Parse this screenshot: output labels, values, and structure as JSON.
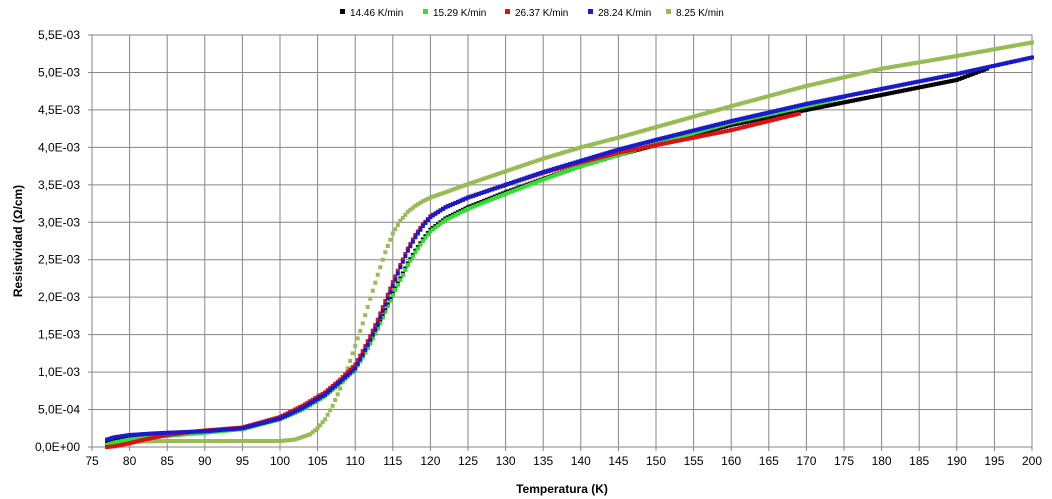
{
  "chart_data": {
    "type": "scatter",
    "title": "",
    "xlabel": "Temperatura (K)",
    "ylabel": "Resistividad (Ω/cm)",
    "xlim": [
      75,
      200
    ],
    "ylim": [
      0,
      0.0055
    ],
    "grid": true,
    "legend_position": "top",
    "x_ticks": [
      75,
      80,
      85,
      90,
      95,
      100,
      105,
      110,
      115,
      120,
      125,
      130,
      135,
      140,
      145,
      150,
      155,
      160,
      165,
      170,
      175,
      180,
      185,
      190,
      195,
      200
    ],
    "y_ticks": [
      0,
      0.0005,
      0.001,
      0.0015,
      0.002,
      0.0025,
      0.003,
      0.0035,
      0.004,
      0.0045,
      0.005,
      0.0055
    ],
    "y_tick_labels": [
      "0,0E+00",
      "5,0E-04",
      "1,0E-03",
      "1,5E-03",
      "2,0E-03",
      "2,5E-03",
      "3,0E-03",
      "3,5E-03",
      "4,0E-03",
      "4,5E-03",
      "5,0E-03",
      "5,5E-03"
    ],
    "series": [
      {
        "name": "14.46 K/min",
        "color": "#000000",
        "x": [
          77,
          78,
          80,
          85,
          90,
          95,
          100,
          103,
          106,
          108,
          110,
          111,
          112,
          113,
          114,
          115,
          116,
          117,
          118,
          119,
          120,
          122,
          125,
          130,
          135,
          140,
          145,
          150,
          160,
          170,
          180,
          190,
          194
        ],
        "y": [
          5e-05,
          0.0001,
          0.00013,
          0.00017,
          0.0002,
          0.00024,
          0.00038,
          0.00052,
          0.0007,
          0.00087,
          0.00105,
          0.00122,
          0.0014,
          0.0016,
          0.00183,
          0.00205,
          0.00225,
          0.00245,
          0.00262,
          0.00277,
          0.0029,
          0.00305,
          0.0032,
          0.0034,
          0.00358,
          0.00375,
          0.0039,
          0.00403,
          0.0043,
          0.0045,
          0.0047,
          0.0049,
          0.00505
        ]
      },
      {
        "name": "15.29 K/min",
        "color": "#33dd33",
        "x": [
          77,
          78,
          80,
          85,
          90,
          95,
          100,
          103,
          106,
          108,
          110,
          111,
          112,
          113,
          114,
          115,
          116,
          117,
          118,
          119,
          120,
          122,
          125,
          130,
          135,
          140,
          145,
          150,
          160,
          170,
          175
        ],
        "y": [
          3e-05,
          6e-05,
          0.0001,
          0.00015,
          0.00019,
          0.00024,
          0.00037,
          0.0005,
          0.00068,
          0.00085,
          0.00103,
          0.0012,
          0.00138,
          0.00158,
          0.0018,
          0.00203,
          0.00223,
          0.00243,
          0.0026,
          0.00275,
          0.00288,
          0.00303,
          0.00318,
          0.00338,
          0.00357,
          0.00375,
          0.0039,
          0.00405,
          0.00433,
          0.00455,
          0.00467
        ]
      },
      {
        "name": "26.37 K/min",
        "color": "#dd1111",
        "x": [
          77,
          78,
          80,
          82,
          85,
          88,
          90,
          95,
          100,
          103,
          106,
          108,
          110,
          111,
          112,
          113,
          114,
          115,
          116,
          117,
          118,
          119,
          120,
          122,
          125,
          130,
          135,
          140,
          145,
          150,
          160,
          169
        ],
        "y": [
          0,
          1e-05,
          5e-05,
          0.0001,
          0.00016,
          0.0002,
          0.00022,
          0.00026,
          0.0004,
          0.00055,
          0.00073,
          0.0009,
          0.0011,
          0.00128,
          0.00148,
          0.0017,
          0.00195,
          0.0022,
          0.00243,
          0.00265,
          0.00283,
          0.00297,
          0.00308,
          0.0032,
          0.00333,
          0.0035,
          0.00366,
          0.0038,
          0.00393,
          0.00403,
          0.00423,
          0.00445
        ]
      },
      {
        "name": "28.24 K/min",
        "color": "#1a1acc",
        "x": [
          77,
          78,
          80,
          83,
          85,
          90,
          95,
          100,
          103,
          106,
          108,
          110,
          111,
          112,
          113,
          114,
          115,
          116,
          117,
          118,
          119,
          120,
          122,
          125,
          130,
          135,
          140,
          145,
          150,
          160,
          170,
          180,
          190,
          200
        ],
        "y": [
          0.0001,
          0.00013,
          0.00016,
          0.00018,
          0.00019,
          0.00021,
          0.00025,
          0.00038,
          0.00052,
          0.0007,
          0.00087,
          0.00105,
          0.00123,
          0.00143,
          0.00165,
          0.0019,
          0.00215,
          0.0024,
          0.00262,
          0.0028,
          0.00295,
          0.00307,
          0.0032,
          0.00333,
          0.0035,
          0.00367,
          0.00382,
          0.00397,
          0.0041,
          0.00435,
          0.00458,
          0.00478,
          0.00498,
          0.0052
        ]
      },
      {
        "name": "8.25 K/min",
        "color": "#99bb55",
        "x": [
          77,
          78,
          80,
          85,
          90,
          95,
          100,
          102,
          104,
          105,
          106,
          107,
          108,
          109,
          110,
          111,
          112,
          113,
          114,
          115,
          116,
          117,
          118,
          119,
          120,
          122,
          125,
          130,
          135,
          140,
          145,
          150,
          160,
          170,
          180,
          190,
          200
        ],
        "y": [
          5e-05,
          6e-05,
          7e-05,
          8e-05,
          8e-05,
          8e-05,
          8e-05,
          0.0001,
          0.00017,
          0.00025,
          0.00037,
          0.00055,
          0.00078,
          0.00105,
          0.00135,
          0.00165,
          0.00198,
          0.0023,
          0.0026,
          0.00285,
          0.00302,
          0.00314,
          0.00322,
          0.00328,
          0.00333,
          0.0034,
          0.00351,
          0.00368,
          0.00385,
          0.004,
          0.00413,
          0.00427,
          0.00455,
          0.00482,
          0.00505,
          0.00522,
          0.0054
        ]
      }
    ]
  }
}
